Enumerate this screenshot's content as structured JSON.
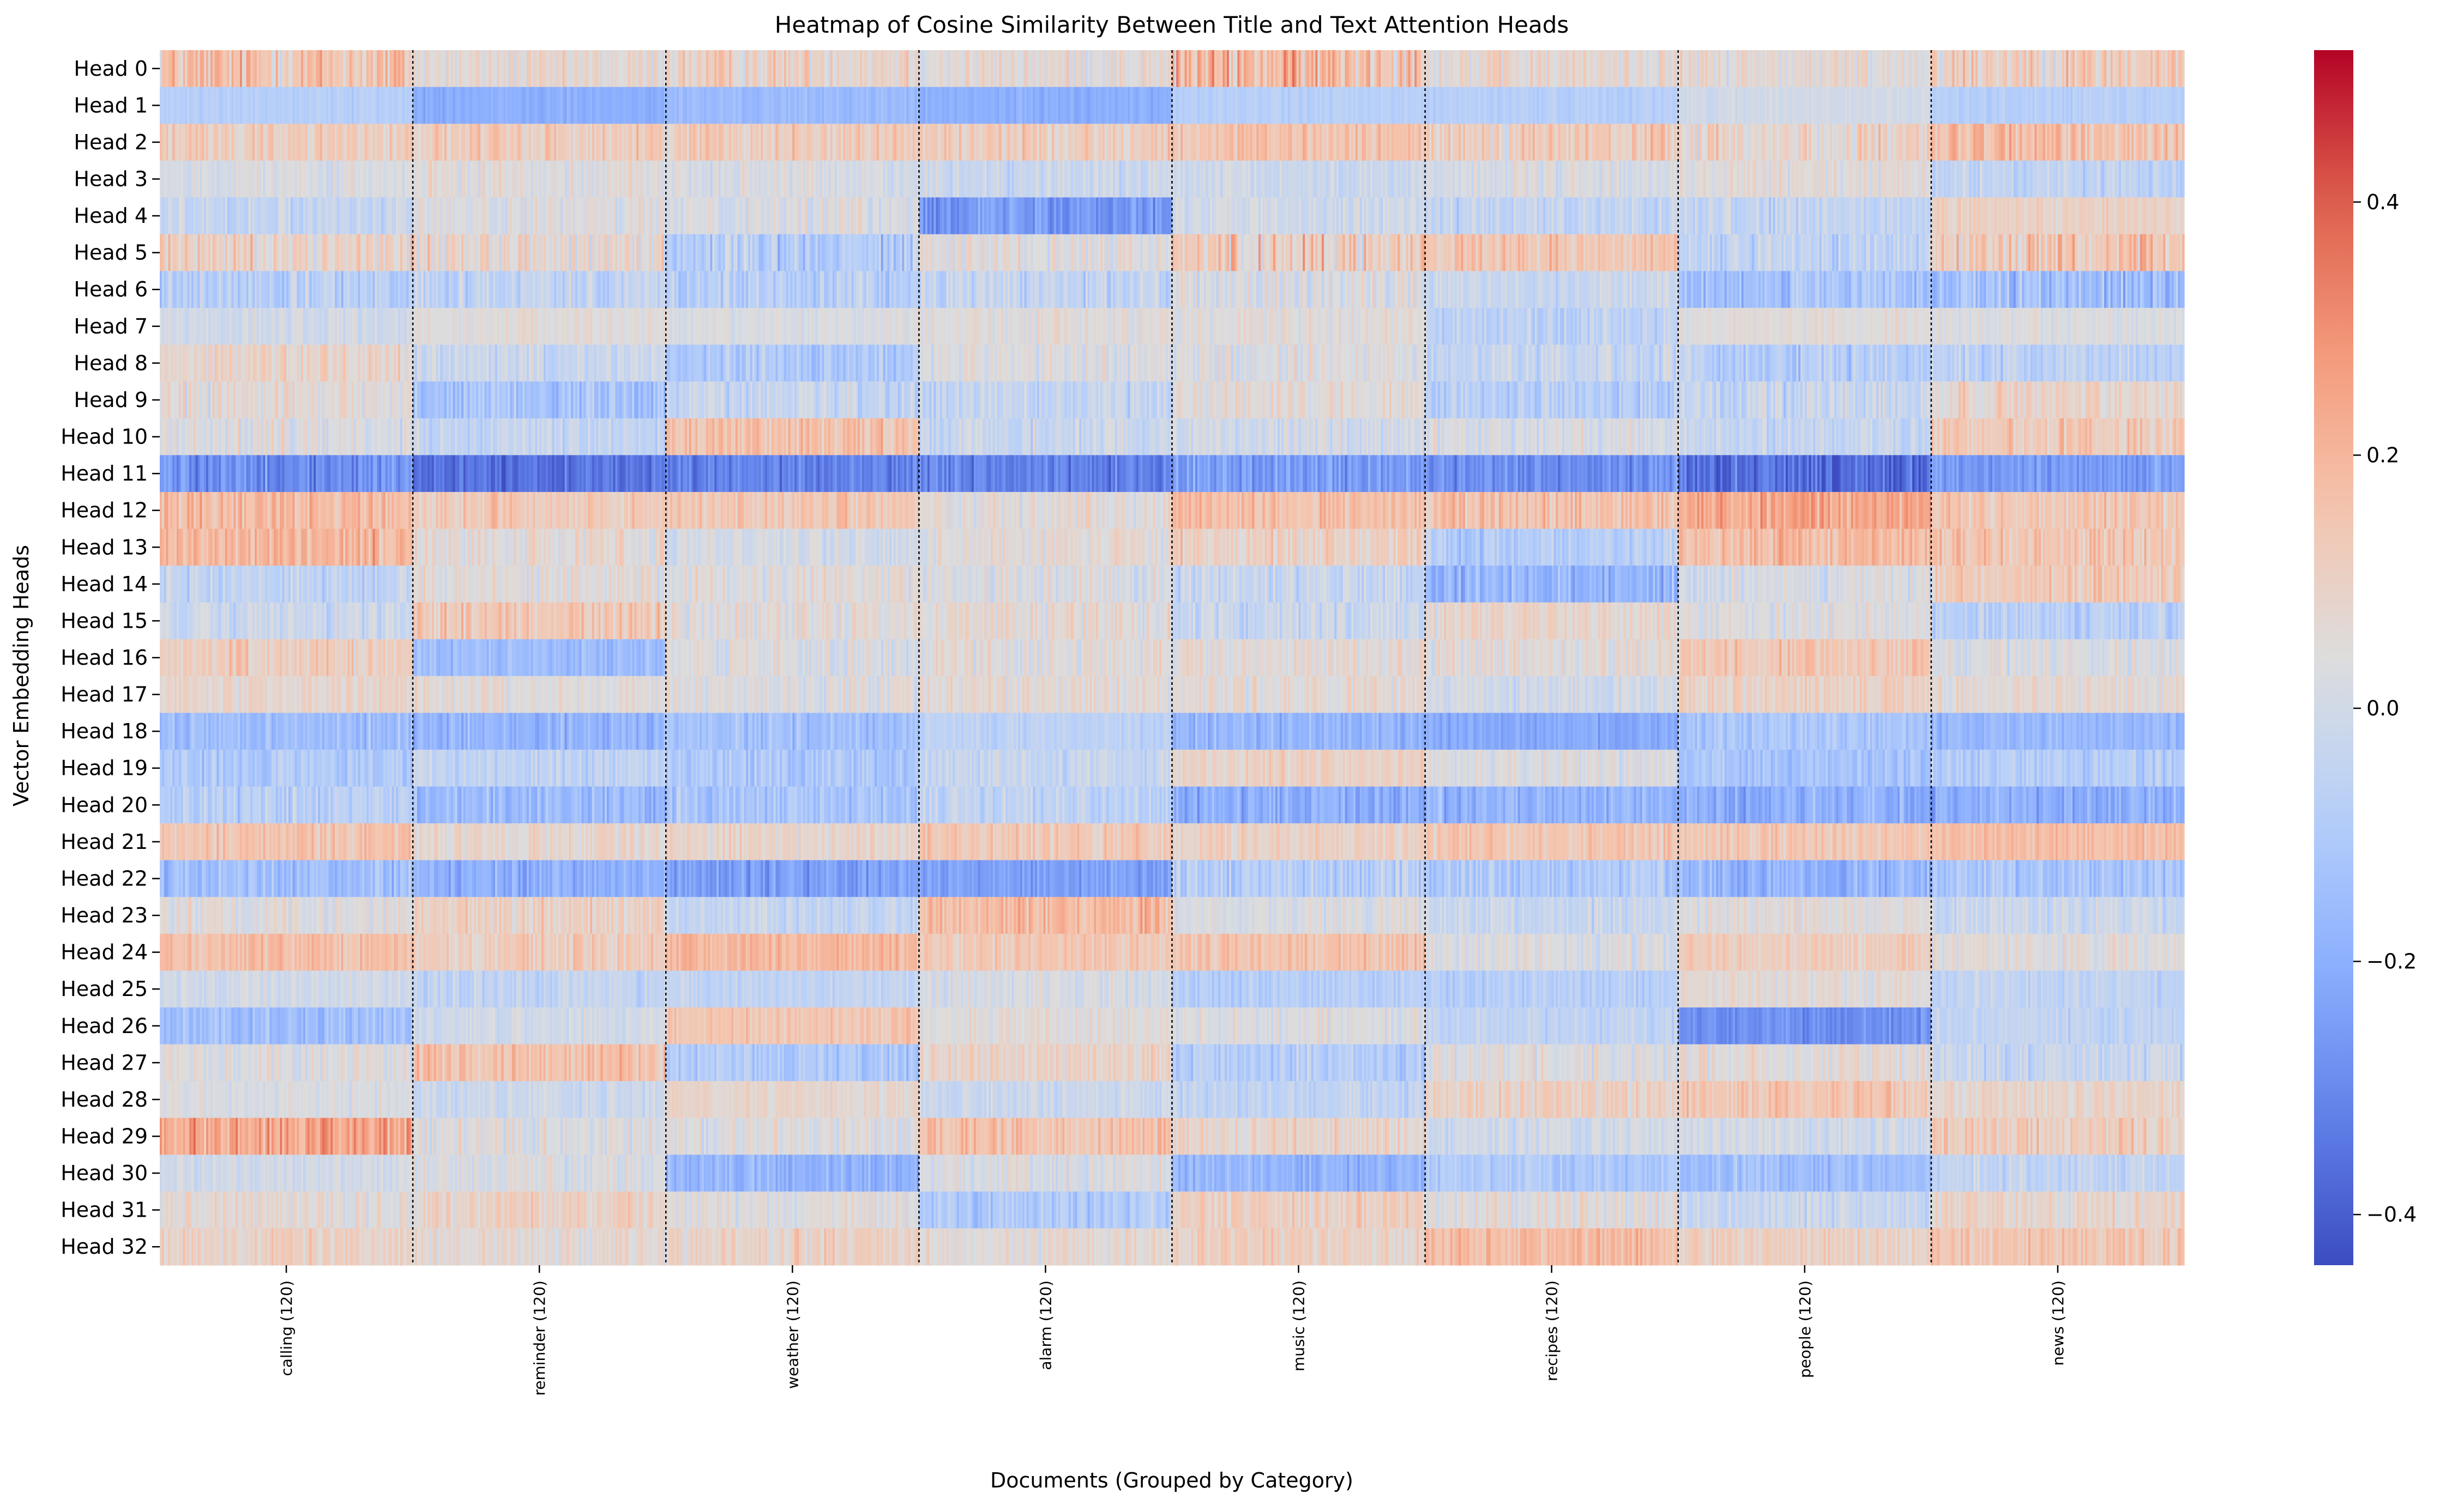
{
  "chart_data": {
    "type": "heatmap",
    "title": "Heatmap of Cosine Similarity Between Title and Text Attention Heads",
    "xlabel": "Documents (Grouped by Category)",
    "ylabel": "Vector Embedding Heads",
    "rows": [
      "Head 0",
      "Head 1",
      "Head 2",
      "Head 3",
      "Head 4",
      "Head 5",
      "Head 6",
      "Head 7",
      "Head 8",
      "Head 9",
      "Head 10",
      "Head 11",
      "Head 12",
      "Head 13",
      "Head 14",
      "Head 15",
      "Head 16",
      "Head 17",
      "Head 18",
      "Head 19",
      "Head 20",
      "Head 21",
      "Head 22",
      "Head 23",
      "Head 24",
      "Head 25",
      "Head 26",
      "Head 27",
      "Head 28",
      "Head 29",
      "Head 30",
      "Head 31",
      "Head 32"
    ],
    "categories": [
      "calling (120)",
      "reminder (120)",
      "weather (120)",
      "alarm (120)",
      "music (120)",
      "recipes (120)",
      "people (120)",
      "news (120)"
    ],
    "documents_per_category": 120,
    "colormap": "coolwarm",
    "colorbar": {
      "vmin": -0.44,
      "vmax": 0.52,
      "ticks": [
        0.4,
        0.2,
        0.0,
        -0.2,
        -0.4
      ],
      "tick_labels": [
        "0.4",
        "0.2",
        "0.0",
        "−0.2",
        "−0.4"
      ]
    },
    "category_separators": "dotted",
    "approx_block_means": [
      [
        0.15,
        0.06,
        0.1,
        0.06,
        0.18,
        0.07,
        0.06,
        0.12
      ],
      [
        -0.08,
        -0.2,
        -0.16,
        -0.2,
        -0.08,
        -0.08,
        0.0,
        -0.08
      ],
      [
        0.12,
        0.12,
        0.13,
        0.12,
        0.15,
        0.12,
        0.08,
        0.17
      ],
      [
        0.02,
        0.05,
        0.02,
        -0.02,
        -0.02,
        0.02,
        0.05,
        -0.05
      ],
      [
        -0.03,
        0.03,
        0.03,
        -0.25,
        0.0,
        -0.05,
        -0.05,
        0.1
      ],
      [
        0.1,
        0.08,
        -0.08,
        0.05,
        0.12,
        0.14,
        -0.05,
        0.14
      ],
      [
        -0.08,
        -0.04,
        -0.08,
        -0.04,
        0.02,
        -0.02,
        -0.13,
        -0.15
      ],
      [
        0.0,
        0.05,
        0.03,
        0.05,
        0.05,
        -0.06,
        0.05,
        0.03
      ],
      [
        0.08,
        -0.02,
        -0.1,
        0.03,
        0.03,
        -0.03,
        -0.08,
        -0.06
      ],
      [
        0.06,
        -0.12,
        -0.03,
        -0.04,
        0.06,
        -0.08,
        -0.03,
        0.08
      ],
      [
        0.04,
        -0.05,
        0.16,
        -0.03,
        0.0,
        0.02,
        -0.04,
        0.13
      ],
      [
        -0.28,
        -0.35,
        -0.32,
        -0.32,
        -0.25,
        -0.28,
        -0.36,
        -0.25
      ],
      [
        0.18,
        0.13,
        0.14,
        0.05,
        0.17,
        0.16,
        0.24,
        0.14
      ],
      [
        0.2,
        0.06,
        0.01,
        0.05,
        0.1,
        -0.08,
        0.18,
        0.15
      ],
      [
        -0.05,
        0.05,
        0.05,
        0.03,
        -0.03,
        -0.18,
        0.02,
        0.12
      ],
      [
        -0.02,
        0.14,
        0.05,
        0.06,
        -0.03,
        0.08,
        0.04,
        -0.08
      ],
      [
        0.12,
        -0.15,
        0.03,
        0.05,
        0.06,
        0.05,
        0.14,
        0.03
      ],
      [
        0.08,
        0.05,
        0.03,
        0.06,
        0.06,
        0.0,
        0.1,
        0.06
      ],
      [
        -0.15,
        -0.18,
        -0.14,
        -0.06,
        -0.18,
        -0.22,
        -0.12,
        -0.17
      ],
      [
        -0.1,
        -0.05,
        -0.1,
        -0.03,
        0.1,
        0.03,
        -0.12,
        -0.08
      ],
      [
        -0.08,
        -0.16,
        -0.12,
        -0.05,
        -0.2,
        -0.18,
        -0.2,
        -0.2
      ],
      [
        0.15,
        0.08,
        0.08,
        0.13,
        0.1,
        0.15,
        0.14,
        0.17
      ],
      [
        -0.14,
        -0.2,
        -0.24,
        -0.24,
        -0.08,
        -0.1,
        -0.18,
        -0.12
      ],
      [
        0.04,
        0.1,
        -0.04,
        0.18,
        0.03,
        -0.02,
        0.05,
        -0.02
      ],
      [
        0.17,
        0.12,
        0.19,
        0.13,
        0.16,
        0.03,
        0.12,
        0.05
      ],
      [
        0.0,
        -0.05,
        -0.05,
        0.02,
        -0.08,
        -0.08,
        0.06,
        -0.05
      ],
      [
        -0.15,
        0.0,
        0.15,
        0.05,
        0.03,
        -0.05,
        -0.28,
        -0.05
      ],
      [
        0.04,
        0.16,
        -0.1,
        0.1,
        -0.08,
        0.03,
        0.05,
        -0.03
      ],
      [
        0.03,
        -0.02,
        0.08,
        -0.02,
        -0.05,
        0.1,
        0.14,
        0.08
      ],
      [
        0.25,
        0.04,
        0.04,
        0.16,
        0.08,
        0.0,
        0.0,
        0.12
      ],
      [
        0.0,
        0.03,
        -0.18,
        0.03,
        -0.18,
        -0.1,
        -0.15,
        -0.05
      ],
      [
        0.06,
        0.1,
        0.04,
        -0.1,
        0.11,
        0.05,
        -0.03,
        0.08
      ],
      [
        0.1,
        0.06,
        0.1,
        0.06,
        0.1,
        0.18,
        0.1,
        0.14
      ]
    ],
    "approx_block_spread": [
      [
        0.14,
        0.08,
        0.1,
        0.08,
        0.15,
        0.08,
        0.08,
        0.12
      ],
      [
        0.03,
        0.03,
        0.03,
        0.03,
        0.03,
        0.03,
        0.03,
        0.03
      ],
      [
        0.08,
        0.08,
        0.08,
        0.08,
        0.07,
        0.1,
        0.1,
        0.1
      ],
      [
        0.06,
        0.06,
        0.06,
        0.06,
        0.06,
        0.06,
        0.06,
        0.06
      ],
      [
        0.07,
        0.06,
        0.07,
        0.07,
        0.06,
        0.07,
        0.07,
        0.05
      ],
      [
        0.1,
        0.1,
        0.1,
        0.08,
        0.14,
        0.08,
        0.08,
        0.12
      ],
      [
        0.08,
        0.08,
        0.08,
        0.08,
        0.08,
        0.06,
        0.08,
        0.1
      ],
      [
        0.05,
        0.04,
        0.04,
        0.05,
        0.05,
        0.06,
        0.04,
        0.04
      ],
      [
        0.08,
        0.07,
        0.07,
        0.07,
        0.07,
        0.08,
        0.08,
        0.07
      ],
      [
        0.08,
        0.08,
        0.08,
        0.07,
        0.07,
        0.08,
        0.08,
        0.08
      ],
      [
        0.08,
        0.07,
        0.08,
        0.07,
        0.07,
        0.07,
        0.07,
        0.08
      ],
      [
        0.08,
        0.06,
        0.06,
        0.07,
        0.08,
        0.07,
        0.08,
        0.06
      ],
      [
        0.08,
        0.07,
        0.07,
        0.07,
        0.07,
        0.08,
        0.08,
        0.07
      ],
      [
        0.08,
        0.07,
        0.06,
        0.06,
        0.08,
        0.07,
        0.08,
        0.08
      ],
      [
        0.07,
        0.07,
        0.07,
        0.07,
        0.07,
        0.08,
        0.07,
        0.07
      ],
      [
        0.07,
        0.08,
        0.07,
        0.07,
        0.07,
        0.07,
        0.07,
        0.07
      ],
      [
        0.08,
        0.05,
        0.07,
        0.07,
        0.07,
        0.07,
        0.07,
        0.07
      ],
      [
        0.06,
        0.06,
        0.06,
        0.06,
        0.06,
        0.06,
        0.06,
        0.06
      ],
      [
        0.06,
        0.06,
        0.06,
        0.04,
        0.06,
        0.04,
        0.06,
        0.05
      ],
      [
        0.07,
        0.07,
        0.07,
        0.06,
        0.06,
        0.06,
        0.06,
        0.06
      ],
      [
        0.07,
        0.07,
        0.07,
        0.07,
        0.07,
        0.07,
        0.07,
        0.07
      ],
      [
        0.07,
        0.06,
        0.06,
        0.07,
        0.06,
        0.06,
        0.06,
        0.05
      ],
      [
        0.07,
        0.06,
        0.07,
        0.05,
        0.08,
        0.07,
        0.07,
        0.07
      ],
      [
        0.07,
        0.07,
        0.06,
        0.08,
        0.06,
        0.06,
        0.06,
        0.06
      ],
      [
        0.06,
        0.07,
        0.06,
        0.06,
        0.07,
        0.06,
        0.06,
        0.06
      ],
      [
        0.05,
        0.05,
        0.05,
        0.05,
        0.05,
        0.05,
        0.05,
        0.05
      ],
      [
        0.06,
        0.05,
        0.06,
        0.05,
        0.06,
        0.05,
        0.05,
        0.05
      ],
      [
        0.07,
        0.08,
        0.07,
        0.07,
        0.07,
        0.07,
        0.07,
        0.07
      ],
      [
        0.05,
        0.05,
        0.05,
        0.05,
        0.06,
        0.07,
        0.07,
        0.06
      ],
      [
        0.1,
        0.07,
        0.07,
        0.08,
        0.07,
        0.06,
        0.06,
        0.08
      ],
      [
        0.05,
        0.06,
        0.06,
        0.06,
        0.06,
        0.06,
        0.06,
        0.06
      ],
      [
        0.07,
        0.07,
        0.06,
        0.07,
        0.07,
        0.07,
        0.07,
        0.07
      ],
      [
        0.07,
        0.06,
        0.07,
        0.06,
        0.07,
        0.07,
        0.07,
        0.07
      ]
    ]
  }
}
